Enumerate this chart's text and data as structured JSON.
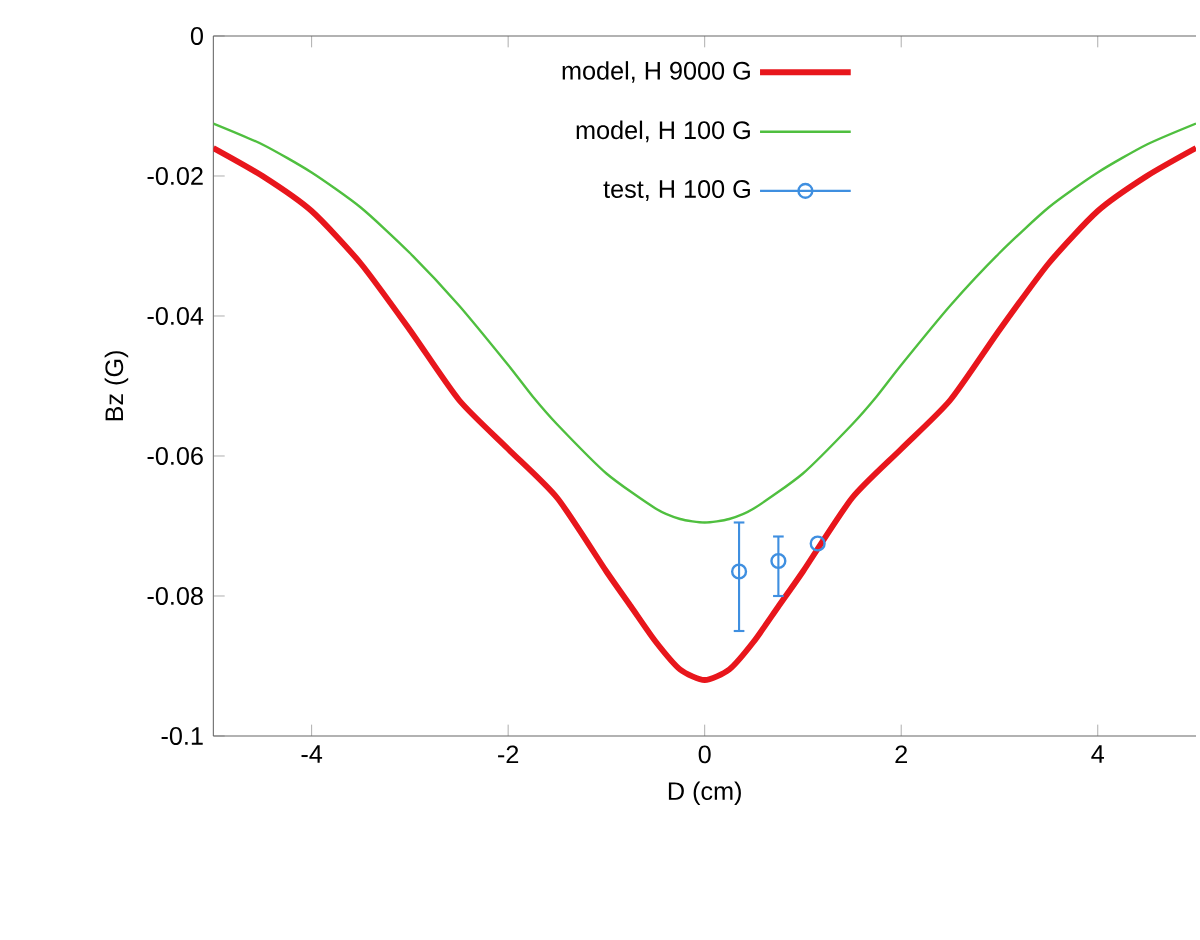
{
  "chart_data": {
    "type": "line",
    "xlabel": "D  (cm)",
    "ylabel": "Bz  (G)",
    "xlim": [
      -5,
      5
    ],
    "ylim": [
      -0.1,
      0
    ],
    "xticks": [
      -4,
      -2,
      0,
      2,
      4
    ],
    "yticks": [
      -0.1,
      -0.08,
      -0.06,
      -0.04,
      -0.02,
      0
    ],
    "legend": "top",
    "grid": false,
    "series": [
      {
        "name": "model, H 9000 G",
        "color": "#e8161c",
        "x": [
          -5,
          -4.5,
          -4,
          -3.5,
          -3,
          -2.5,
          -2,
          -1.5,
          -1,
          -0.75,
          -0.5,
          -0.25,
          0,
          0.25,
          0.5,
          0.75,
          1,
          1.5,
          2,
          2.5,
          3,
          3.5,
          4,
          4.5,
          5
        ],
        "values": [
          -0.016,
          -0.02,
          -0.025,
          -0.0325,
          -0.042,
          -0.052,
          -0.059,
          -0.066,
          -0.0765,
          -0.0815,
          -0.0865,
          -0.0905,
          -0.092,
          -0.0905,
          -0.0865,
          -0.0815,
          -0.0765,
          -0.066,
          -0.059,
          -0.052,
          -0.042,
          -0.0325,
          -0.025,
          -0.02,
          -0.016
        ]
      },
      {
        "name": "model, H 100 G",
        "color": "#4fbf3f",
        "x": [
          -5,
          -4.5,
          -4,
          -3.5,
          -3,
          -2.5,
          -2,
          -1.75,
          -1.5,
          -1,
          -0.5,
          -0.25,
          0,
          0.25,
          0.5,
          1,
          1.5,
          1.75,
          2,
          2.5,
          3,
          3.5,
          4,
          4.5,
          5
        ],
        "values": [
          -0.0125,
          -0.0155,
          -0.0195,
          -0.0245,
          -0.031,
          -0.0385,
          -0.047,
          -0.0515,
          -0.0555,
          -0.0625,
          -0.0675,
          -0.069,
          -0.0695,
          -0.069,
          -0.0675,
          -0.0625,
          -0.0555,
          -0.0515,
          -0.047,
          -0.0385,
          -0.031,
          -0.0245,
          -0.0195,
          -0.0155,
          -0.0125
        ]
      },
      {
        "name": "test, H 100 G",
        "type": "scatter",
        "color": "#3f8fe0",
        "marker": "circle",
        "x": [
          0.35,
          0.75,
          1.15
        ],
        "values": [
          -0.0765,
          -0.075,
          -0.0725
        ],
        "errors": [
          [
            -0.085,
            -0.0695
          ],
          [
            -0.08,
            -0.0715
          ],
          null
        ]
      }
    ]
  }
}
